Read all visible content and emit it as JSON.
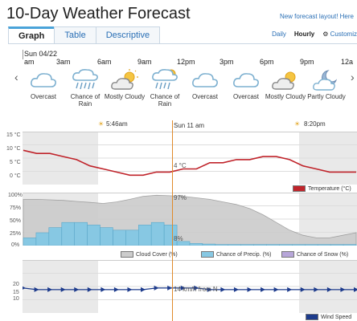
{
  "header": {
    "title": "10-Day Weather Forecast",
    "new_layout_link": "New forecast layout! Here"
  },
  "tabs": [
    "Graph",
    "Table",
    "Descriptive"
  ],
  "view_options": {
    "daily": "Daily",
    "hourly": "Hourly",
    "customize": "Customiz"
  },
  "timeline": {
    "date_label": "Sun 04/22",
    "hours": [
      "am",
      "3am",
      "6am",
      "9am",
      "12pm",
      "3pm",
      "6pm",
      "9pm",
      "12a"
    ]
  },
  "nav": {
    "prev": "‹",
    "next": "›"
  },
  "forecast": [
    {
      "icon": "cloud-icon",
      "label": "Overcast"
    },
    {
      "icon": "rain-cloud-icon",
      "label": "Chance of Rain"
    },
    {
      "icon": "sun-cloud-icon",
      "label": "Mostly Cloudy"
    },
    {
      "icon": "rain-sun-cloud-icon",
      "label": "Chance of Rain"
    },
    {
      "icon": "cloud-icon",
      "label": "Overcast"
    },
    {
      "icon": "cloud-icon",
      "label": "Overcast"
    },
    {
      "icon": "sun-cloud-icon",
      "label": "Mostly Cloudy"
    },
    {
      "icon": "moon-cloud-icon",
      "label": "Partly Cloudy"
    }
  ],
  "sun": {
    "sunrise": "5:46am",
    "sunset": "8:20pm",
    "now": "Sun 11 am"
  },
  "chart_data": [
    {
      "type": "line",
      "title": "",
      "ylabel": "°C",
      "yticks": [
        "15 °C",
        "10 °C",
        "5 °C",
        "0 °C"
      ],
      "ylim": [
        0,
        15
      ],
      "series": [
        {
          "name": "Temperature (°C)",
          "color": "#c0242b",
          "values": [
            10,
            9,
            9,
            8,
            7,
            5,
            4,
            3,
            2,
            2,
            3,
            3,
            4,
            4,
            6,
            6,
            7,
            7,
            8,
            8,
            7,
            5,
            4,
            3,
            3,
            3
          ]
        }
      ],
      "annotation": "4 °C"
    },
    {
      "type": "area",
      "ylabel": "%",
      "yticks": [
        "100%",
        "75%",
        "50%",
        "25%",
        "0%"
      ],
      "ylim": [
        0,
        100
      ],
      "series": [
        {
          "name": "Cloud Cover (%)",
          "color": "#cccccc",
          "values": [
            90,
            90,
            89,
            88,
            86,
            84,
            82,
            85,
            90,
            96,
            98,
            97,
            96,
            93,
            90,
            85,
            80,
            72,
            60,
            45,
            30,
            20,
            15,
            15,
            20,
            25
          ]
        },
        {
          "name": "Chance of Precip. (%)",
          "color": "#87c8e3",
          "values": [
            15,
            25,
            35,
            45,
            45,
            40,
            35,
            30,
            30,
            40,
            45,
            40,
            8,
            4,
            3,
            2,
            2,
            2,
            2,
            2,
            2,
            2,
            2,
            2,
            2,
            2
          ]
        },
        {
          "name": "Chance of Snow (%)",
          "color": "#b7a6d9",
          "values": []
        }
      ],
      "annotations": [
        "97%",
        "8%"
      ]
    },
    {
      "type": "line",
      "ylabel": "km/h",
      "yticks": [
        "20",
        "15",
        "10"
      ],
      "series": [
        {
          "name": "Wind Speed",
          "color": "#1d3b8c",
          "values": [
            14,
            13,
            13,
            13,
            13,
            13,
            13,
            13,
            13,
            13,
            14,
            14,
            14,
            14,
            13,
            13,
            13,
            13,
            13,
            13,
            13,
            13,
            13,
            13,
            13,
            13
          ]
        }
      ],
      "annotation": "14 km/h from N"
    }
  ],
  "legend": {
    "temperature": "Temperature (°C)",
    "cloud": "Cloud Cover (%)",
    "precip": "Chance of Precip. (%)",
    "snow": "Chance of Snow (%)",
    "wind": "Wind Speed"
  }
}
